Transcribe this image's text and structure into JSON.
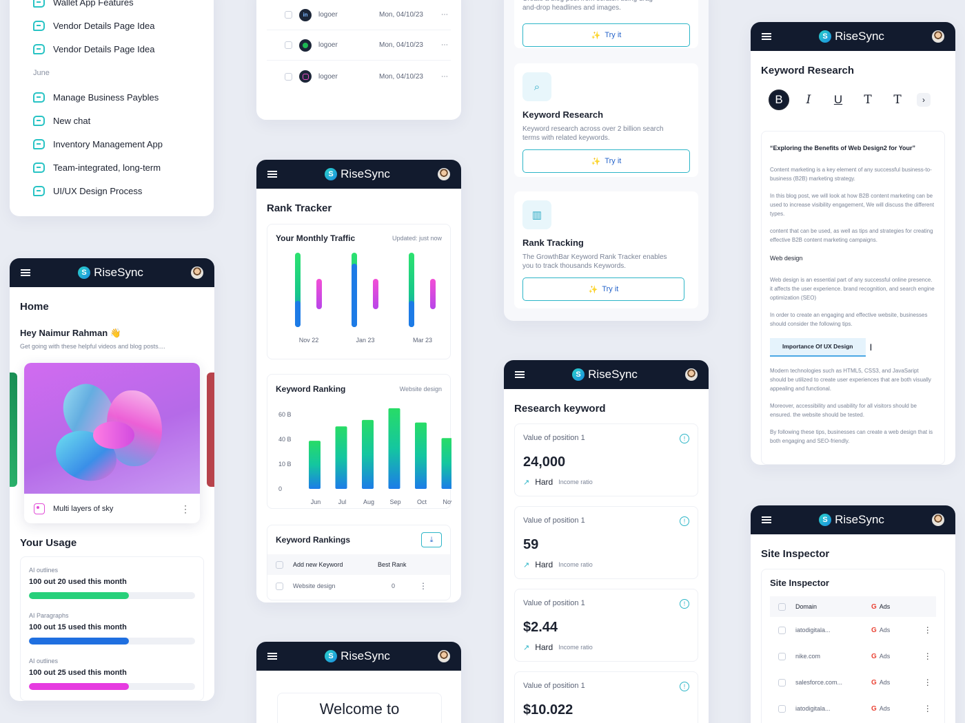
{
  "brand": "RiseSync",
  "chats": {
    "items": [
      "Wallet App Features",
      "Vendor Details Page Idea",
      "Vendor Details Page Idea"
    ],
    "group": "June",
    "june_items": [
      "Manage Business Paybles",
      "New chat",
      "Inventory Management App",
      "Team-integrated, long-term",
      "UI/UX Design Process"
    ]
  },
  "home": {
    "title": "Home",
    "greeting": "Hey Naimur Rahman",
    "wave": "👋",
    "subtitle": "Get going with these helpful videos and blog posts....",
    "media_caption": "Multi layers of sky",
    "usage_title": "Your Usage",
    "usage": [
      {
        "label": "AI outlines",
        "value": "100 out 20 used this month",
        "fill": 0.6,
        "color": "#27d07a"
      },
      {
        "label": "AI Paragraphs",
        "value": "100 out 15 used this month",
        "fill": 0.6,
        "color": "#1f6fe0"
      },
      {
        "label": "AI outlines",
        "value": "100 out 25 used this month",
        "fill": 0.6,
        "color": "#e63be0"
      }
    ]
  },
  "logs": [
    {
      "name": "logoer",
      "date": "Mon, 04/10/23",
      "icon": "linkedin-icon",
      "color": "#1d4f8f"
    },
    {
      "name": "logoer",
      "date": "Mon, 04/10/23",
      "icon": "spotify-icon",
      "color": "#1db954"
    },
    {
      "name": "logoer",
      "date": "Mon, 04/10/23",
      "icon": "instagram-icon",
      "color": "#d6249f"
    }
  ],
  "rank": {
    "title": "Rank Tracker",
    "traffic_title": "Your Monthly Traffic",
    "updated": "Updated: just now",
    "traffic_labels": [
      "Nov 22",
      "Jan 23",
      "Mar 23"
    ],
    "ranking_title": "Keyword Ranking",
    "ranking_filter": "Website design",
    "rankings_title": "Keyword Rankings",
    "col_keyword": "Add new Keyword",
    "col_rank": "Best Rank",
    "row_keyword": "Website design",
    "row_rank": "0"
  },
  "chart_data": [
    {
      "type": "bar",
      "title": "Your Monthly Traffic",
      "categories": [
        "Nov 22",
        "Jan 23",
        "Mar 23"
      ],
      "series": [
        {
          "values": [
            108,
            108,
            108
          ]
        },
        {
          "values": [
            38,
            92,
            38
          ]
        },
        {
          "values": [
            70,
            70,
            70
          ]
        }
      ]
    },
    {
      "type": "bar",
      "title": "Keyword Ranking",
      "categories": [
        "Jun",
        "Jul",
        "Aug",
        "Sep",
        "Oct",
        "Nov"
      ],
      "yticks": [
        "0",
        "10 B",
        "40 B",
        "60 B"
      ],
      "values": [
        37,
        48,
        53,
        62,
        51,
        39
      ],
      "ylim": [
        0,
        60
      ]
    }
  ],
  "welcome": {
    "text": "Welcome to"
  },
  "features": {
    "top_desc": "Create a blog post from scratch using drag-and-drop headlines and images.",
    "try": "Try it",
    "items": [
      {
        "title": "Keyword Research",
        "desc": "Keyword research across over 2 billion search terms with related keywords.",
        "icon": "search-icon"
      },
      {
        "title": "Rank Tracking",
        "desc": "The GrowthBar Keyword Rank Tracker enables you to track thousands Keywords.",
        "icon": "bar-chart-icon"
      }
    ]
  },
  "research": {
    "title": "Research keyword",
    "metric_label": "Value of position 1",
    "difficulty": "Hard",
    "ratio": "Income ratio",
    "values": [
      "24,000",
      "59",
      "$2.44",
      "$10.022"
    ]
  },
  "editor": {
    "title": "Keyword Research",
    "toolbar": [
      "B",
      "I",
      "U",
      "T",
      "T"
    ],
    "heading": "“Exploring the Benefits of Web Design2 for Your”",
    "p1": "Content marketing is a key element of any successful business-to-business (B2B) marketing strategy.",
    "p2": "In this blog post, we will look at how B2B content marketing can be used to increase visibility engagement, We will discuss the different types.",
    "p3": "content that can be used, as well as tips and strategies for creating effective B2B content marketing campaigns.",
    "subheading": "Web design",
    "p4": "Web design is an essential part of any successful online presence. it affects the user experience. brand recognition, and search engine optimization (SEO)",
    "p5": "In order to create an engaging and effective website, businesses should consider the following tips.",
    "highlight": "Importance Of UX Design",
    "p6": "Modern technologies such as HTML5, CSS3, and JavaSaript should be utilized to create user experiences that are both visually appealing and functional.",
    "p7": "Moreover, accessibility and usability for all visitors should be ensured. the website should be tested.",
    "p8": "By following these tips, businesses can create a web design that is both engaging and SEO-friendly."
  },
  "inspector": {
    "title": "Site Inspector",
    "section": "Site Inspector",
    "col_domain": "Domain",
    "ads": "Ads",
    "domains": [
      "iatodigitala...",
      "nike.com",
      "salesforce.com...",
      "iatodigitala..."
    ]
  }
}
